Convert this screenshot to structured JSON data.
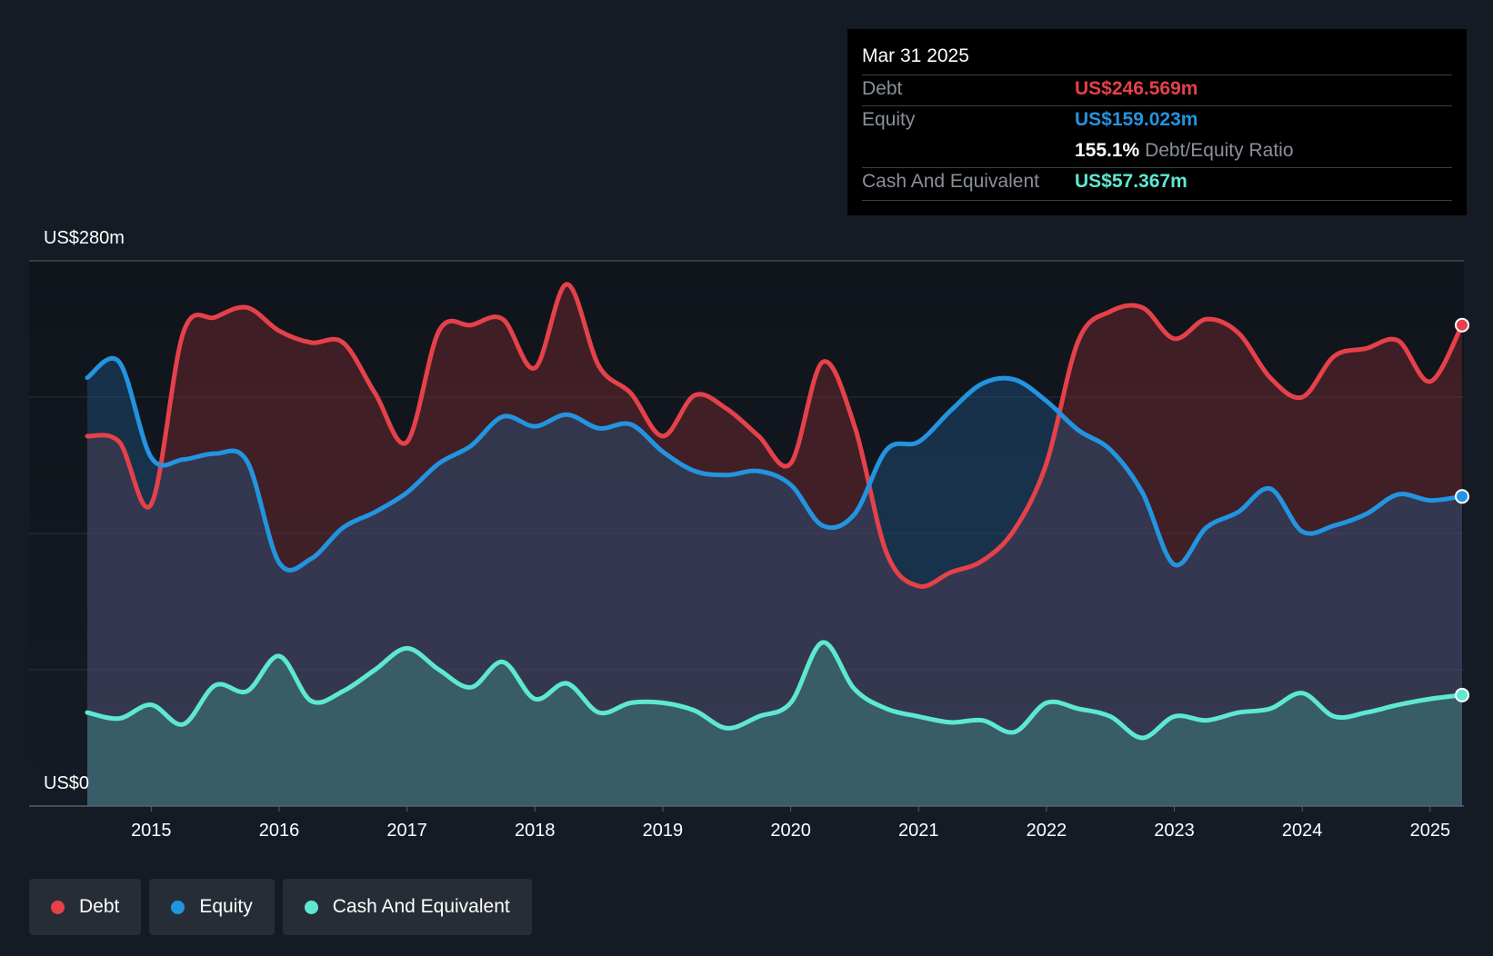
{
  "tooltip": {
    "date": "Mar 31 2025",
    "debt_label": "Debt",
    "debt_value": "US$246.569m",
    "equity_label": "Equity",
    "equity_value": "US$159.023m",
    "ratio_value": "155.1%",
    "ratio_label": "Debt/Equity Ratio",
    "cash_label": "Cash And Equivalent",
    "cash_value": "US$57.367m"
  },
  "legend": {
    "debt": "Debt",
    "equity": "Equity",
    "cash": "Cash And Equivalent"
  },
  "colors": {
    "debt": "#e5414a",
    "equity": "#2394df",
    "cash": "#5ee8d2",
    "background": "#151b24"
  },
  "chart_data": {
    "type": "area",
    "title": "",
    "y_top_label": "US$280m",
    "y_bottom_label": "US$0",
    "ylim": [
      0,
      280
    ],
    "xlim": [
      2014.5,
      2025.25
    ],
    "x_ticks": [
      "2015",
      "2016",
      "2017",
      "2018",
      "2019",
      "2020",
      "2021",
      "2022",
      "2023",
      "2024",
      "2025"
    ],
    "series": [
      {
        "name": "Debt",
        "points": [
          [
            2014.5,
            190
          ],
          [
            2014.75,
            187
          ],
          [
            2015.0,
            155
          ],
          [
            2015.25,
            243
          ],
          [
            2015.5,
            251
          ],
          [
            2015.75,
            256
          ],
          [
            2016.0,
            244
          ],
          [
            2016.25,
            238
          ],
          [
            2016.5,
            238
          ],
          [
            2016.75,
            212
          ],
          [
            2017.0,
            187
          ],
          [
            2017.25,
            244
          ],
          [
            2017.5,
            247
          ],
          [
            2017.75,
            250
          ],
          [
            2018.0,
            225
          ],
          [
            2018.25,
            268
          ],
          [
            2018.5,
            226
          ],
          [
            2018.75,
            212
          ],
          [
            2019.0,
            190
          ],
          [
            2019.25,
            211
          ],
          [
            2019.5,
            204
          ],
          [
            2019.75,
            190
          ],
          [
            2020.0,
            176
          ],
          [
            2020.25,
            228
          ],
          [
            2020.5,
            195
          ],
          [
            2020.75,
            130
          ],
          [
            2021.0,
            113
          ],
          [
            2021.25,
            120
          ],
          [
            2021.5,
            126
          ],
          [
            2021.75,
            142
          ],
          [
            2022.0,
            176
          ],
          [
            2022.25,
            239
          ],
          [
            2022.5,
            254
          ],
          [
            2022.75,
            256
          ],
          [
            2023.0,
            240
          ],
          [
            2023.25,
            250
          ],
          [
            2023.5,
            243
          ],
          [
            2023.75,
            220
          ],
          [
            2024.0,
            210
          ],
          [
            2024.25,
            231
          ],
          [
            2024.5,
            235
          ],
          [
            2024.75,
            239
          ],
          [
            2025.0,
            218
          ],
          [
            2025.25,
            247
          ]
        ]
      },
      {
        "name": "Equity",
        "points": [
          [
            2014.5,
            220
          ],
          [
            2014.75,
            228
          ],
          [
            2015.0,
            179
          ],
          [
            2015.25,
            178
          ],
          [
            2015.5,
            181
          ],
          [
            2015.75,
            177
          ],
          [
            2016.0,
            125
          ],
          [
            2016.25,
            127
          ],
          [
            2016.5,
            143
          ],
          [
            2016.75,
            151
          ],
          [
            2017.0,
            161
          ],
          [
            2017.25,
            176
          ],
          [
            2017.5,
            185
          ],
          [
            2017.75,
            200
          ],
          [
            2018.0,
            195
          ],
          [
            2018.25,
            201
          ],
          [
            2018.5,
            194
          ],
          [
            2018.75,
            196
          ],
          [
            2019.0,
            182
          ],
          [
            2019.25,
            172
          ],
          [
            2019.5,
            170
          ],
          [
            2019.75,
            172
          ],
          [
            2020.0,
            165
          ],
          [
            2020.25,
            144
          ],
          [
            2020.5,
            150
          ],
          [
            2020.75,
            183
          ],
          [
            2021.0,
            187
          ],
          [
            2021.25,
            203
          ],
          [
            2021.5,
            217
          ],
          [
            2021.75,
            219
          ],
          [
            2022.0,
            208
          ],
          [
            2022.25,
            193
          ],
          [
            2022.5,
            183
          ],
          [
            2022.75,
            161
          ],
          [
            2023.0,
            124
          ],
          [
            2023.25,
            143
          ],
          [
            2023.5,
            151
          ],
          [
            2023.75,
            163
          ],
          [
            2024.0,
            141
          ],
          [
            2024.25,
            144
          ],
          [
            2024.5,
            150
          ],
          [
            2024.75,
            160
          ],
          [
            2025.0,
            157
          ],
          [
            2025.25,
            159
          ]
        ]
      },
      {
        "name": "Cash And Equivalent",
        "points": [
          [
            2014.5,
            48
          ],
          [
            2014.75,
            45
          ],
          [
            2015.0,
            52
          ],
          [
            2015.25,
            42
          ],
          [
            2015.5,
            62
          ],
          [
            2015.75,
            59
          ],
          [
            2016.0,
            77
          ],
          [
            2016.25,
            54
          ],
          [
            2016.5,
            59
          ],
          [
            2016.75,
            70
          ],
          [
            2017.0,
            81
          ],
          [
            2017.25,
            70
          ],
          [
            2017.5,
            61
          ],
          [
            2017.75,
            74
          ],
          [
            2018.0,
            55
          ],
          [
            2018.25,
            63
          ],
          [
            2018.5,
            48
          ],
          [
            2018.75,
            53
          ],
          [
            2019.0,
            53
          ],
          [
            2019.25,
            49
          ],
          [
            2019.5,
            40
          ],
          [
            2019.75,
            46
          ],
          [
            2020.0,
            53
          ],
          [
            2020.25,
            84
          ],
          [
            2020.5,
            60
          ],
          [
            2020.75,
            50
          ],
          [
            2021.0,
            46
          ],
          [
            2021.25,
            43
          ],
          [
            2021.5,
            44
          ],
          [
            2021.75,
            38
          ],
          [
            2022.0,
            53
          ],
          [
            2022.25,
            50
          ],
          [
            2022.5,
            46
          ],
          [
            2022.75,
            35
          ],
          [
            2023.0,
            46
          ],
          [
            2023.25,
            44
          ],
          [
            2023.5,
            48
          ],
          [
            2023.75,
            50
          ],
          [
            2024.0,
            58
          ],
          [
            2024.25,
            46
          ],
          [
            2024.5,
            48
          ],
          [
            2024.75,
            52
          ],
          [
            2025.0,
            55
          ],
          [
            2025.25,
            57
          ]
        ]
      }
    ]
  }
}
